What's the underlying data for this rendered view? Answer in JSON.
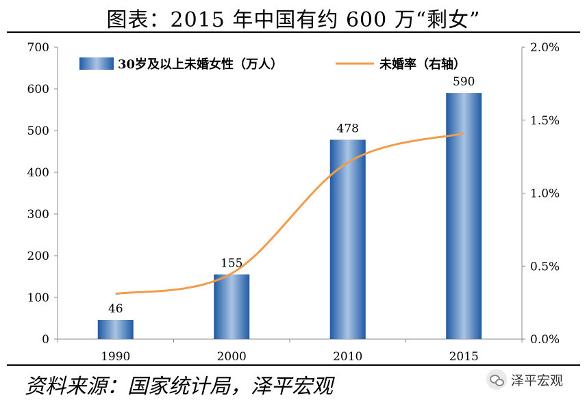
{
  "title": "图表：2015 年中国有约 600 万“剩女”",
  "source": "资料来源：国家统计局，泽平宏观",
  "brand": "泽平宏观",
  "colors": {
    "bar": "#2f6db8",
    "bar_light": "#a9c4e4",
    "line": "#f29b4b",
    "axis": "#888888"
  },
  "chart_data": {
    "type": "bar+line",
    "categories": [
      "1990",
      "2000",
      "2010",
      "2015"
    ],
    "series": [
      {
        "name": "30岁及以上未婚女性（万人）",
        "type": "bar",
        "axis": "left",
        "values": [
          46,
          155,
          478,
          590
        ],
        "labels": [
          "46",
          "155",
          "478",
          "590"
        ]
      },
      {
        "name": "未婚率（右轴）",
        "type": "line",
        "axis": "right",
        "values": [
          0.0031,
          0.0045,
          0.0121,
          0.0141
        ]
      }
    ],
    "left_axis": {
      "ylim": [
        0,
        700
      ],
      "ticks": [
        0,
        100,
        200,
        300,
        400,
        500,
        600,
        700
      ],
      "tick_labels": [
        "0",
        "100",
        "200",
        "300",
        "400",
        "500",
        "600",
        "700"
      ]
    },
    "right_axis": {
      "ylim": [
        0,
        0.02
      ],
      "ticks": [
        0,
        0.005,
        0.01,
        0.015,
        0.02
      ],
      "tick_labels": [
        "0.0%",
        "0.5%",
        "1.0%",
        "1.5%",
        "2.0%"
      ]
    },
    "legend": "top",
    "grid": false
  }
}
